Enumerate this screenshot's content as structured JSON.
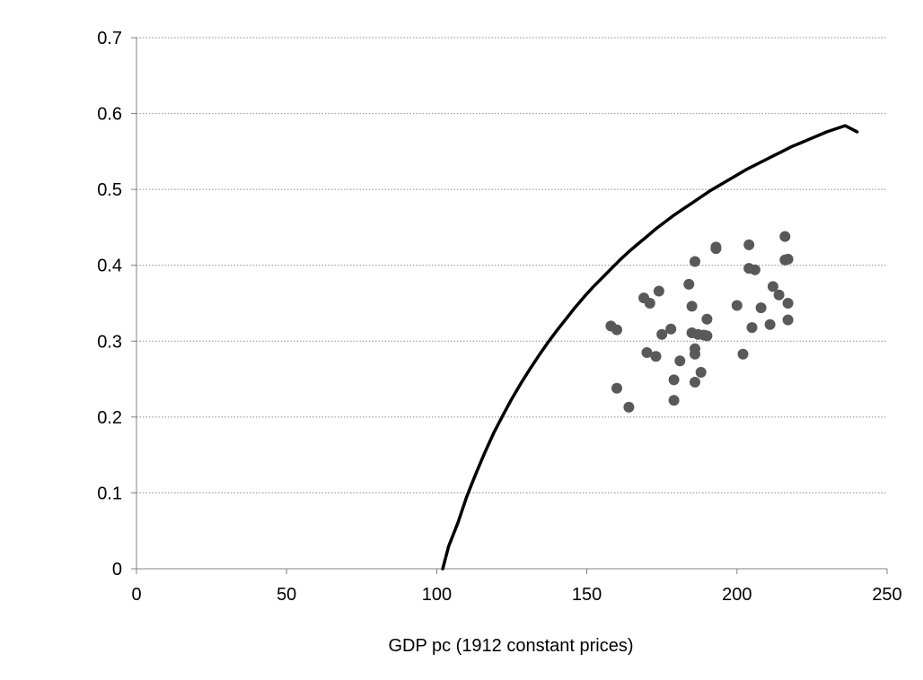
{
  "chart_data": {
    "type": "scatter",
    "title": "",
    "xlabel": "GDP pc (1912 constant prices)",
    "ylabel": "",
    "xlim": [
      0,
      250
    ],
    "ylim": [
      0,
      0.7
    ],
    "x_ticks": [
      "0",
      "50",
      "100",
      "150",
      "200",
      "250"
    ],
    "y_ticks": [
      "0",
      "0.1",
      "0.2",
      "0.3",
      "0.4",
      "0.5",
      "0.6",
      "0.7"
    ],
    "grid": "horizontal-dotted",
    "legend": "none",
    "colors": {
      "points": "#595959",
      "curve": "#000000",
      "grid": "#8c8c8c",
      "axis": "#808080"
    },
    "series": [
      {
        "type": "line",
        "x": [
          102,
          104,
          107,
          110,
          113,
          116,
          119,
          122,
          125,
          128,
          131,
          134,
          137,
          140,
          143,
          146,
          149,
          152,
          155,
          158,
          161,
          164,
          167,
          170,
          173,
          176,
          179,
          182,
          185,
          188,
          191,
          194,
          197,
          200,
          203,
          206,
          209,
          212,
          215,
          218,
          221,
          224,
          227,
          230,
          233,
          236,
          240
        ],
        "y": [
          0.0,
          0.03,
          0.06,
          0.095,
          0.125,
          0.153,
          0.179,
          0.202,
          0.224,
          0.244,
          0.263,
          0.281,
          0.298,
          0.314,
          0.329,
          0.344,
          0.358,
          0.371,
          0.383,
          0.395,
          0.407,
          0.418,
          0.428,
          0.438,
          0.448,
          0.457,
          0.466,
          0.474,
          0.482,
          0.49,
          0.498,
          0.505,
          0.512,
          0.519,
          0.526,
          0.532,
          0.538,
          0.544,
          0.55,
          0.556,
          0.561,
          0.566,
          0.571,
          0.576,
          0.58,
          0.584,
          0.576
        ]
      },
      {
        "type": "scatter",
        "x": [
          158,
          160,
          160,
          164,
          169,
          170,
          171,
          173,
          174,
          175,
          178,
          179,
          179,
          181,
          184,
          185,
          185,
          186,
          186,
          186,
          186,
          187,
          188,
          189,
          190,
          190,
          193,
          193,
          200,
          202,
          204,
          204,
          205,
          206,
          208,
          211,
          212,
          214,
          216,
          216,
          217,
          217,
          217
        ],
        "y": [
          0.32,
          0.315,
          0.238,
          0.213,
          0.357,
          0.285,
          0.35,
          0.28,
          0.366,
          0.309,
          0.316,
          0.249,
          0.222,
          0.274,
          0.375,
          0.311,
          0.346,
          0.405,
          0.283,
          0.29,
          0.246,
          0.309,
          0.259,
          0.308,
          0.307,
          0.329,
          0.424,
          0.422,
          0.347,
          0.283,
          0.427,
          0.396,
          0.318,
          0.394,
          0.344,
          0.322,
          0.372,
          0.361,
          0.438,
          0.407,
          0.408,
          0.35,
          0.328
        ]
      }
    ]
  }
}
